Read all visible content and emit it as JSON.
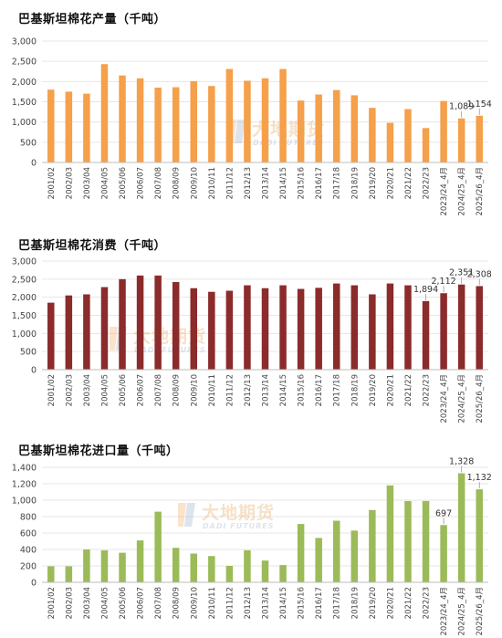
{
  "watermark": {
    "name": "大地期货",
    "english": "DADI FUTURES"
  },
  "chart_data": [
    {
      "type": "bar",
      "title": "巴基斯坦棉花产量（千吨）",
      "color": "#F5A04A",
      "categories": [
        "2001/02",
        "2002/03",
        "2003/04",
        "2004/05",
        "2005/06",
        "2006/07",
        "2007/08",
        "2008/09",
        "2009/10",
        "2010/11",
        "2011/12",
        "2012/13",
        "2013/14",
        "2014/15",
        "2015/16",
        "2016/17",
        "2017/18",
        "2018/19",
        "2019/20",
        "2020/21",
        "2021/22",
        "2022/23",
        "2023/24_4月",
        "2024/25_4月",
        "2025/26_4月"
      ],
      "values": [
        1800,
        1750,
        1700,
        2430,
        2150,
        2080,
        1850,
        1860,
        2010,
        1890,
        2310,
        2020,
        2080,
        2310,
        1530,
        1680,
        1790,
        1660,
        1350,
        980,
        1320,
        850,
        1520,
        1089,
        1154
      ],
      "ylim": [
        0,
        3000
      ],
      "yticks": [
        0,
        500,
        1000,
        1500,
        2000,
        2500,
        3000
      ],
      "ytick_labels": [
        "0",
        "500",
        "1,000",
        "1,500",
        "2,000",
        "2,500",
        "3,000"
      ],
      "data_labels": [
        {
          "index": 23,
          "text": "1,089"
        },
        {
          "index": 24,
          "text": "1,154"
        }
      ]
    },
    {
      "type": "bar",
      "title": "巴基斯坦棉花消费（千吨）",
      "color": "#8B2B2B",
      "categories": [
        "2001/02",
        "2002/03",
        "2003/04",
        "2004/05",
        "2005/06",
        "2006/07",
        "2007/08",
        "2008/09",
        "2009/10",
        "2010/11",
        "2011/12",
        "2012/13",
        "2013/14",
        "2014/15",
        "2015/16",
        "2016/17",
        "2017/18",
        "2018/19",
        "2019/20",
        "2020/21",
        "2021/22",
        "2022/23",
        "2023/24_4月",
        "2024/25_4月",
        "2025/26_4月"
      ],
      "values": [
        1850,
        2050,
        2080,
        2280,
        2500,
        2600,
        2600,
        2420,
        2250,
        2150,
        2180,
        2330,
        2250,
        2330,
        2230,
        2260,
        2380,
        2330,
        2080,
        2380,
        2330,
        1894,
        2112,
        2351,
        2308
      ],
      "ylim": [
        0,
        3000
      ],
      "yticks": [
        0,
        500,
        1000,
        1500,
        2000,
        2500,
        3000
      ],
      "ytick_labels": [
        "0",
        "500",
        "1,000",
        "1,500",
        "2,000",
        "2,500",
        "3,000"
      ],
      "data_labels": [
        {
          "index": 21,
          "text": "1,894"
        },
        {
          "index": 22,
          "text": "2,112"
        },
        {
          "index": 23,
          "text": "2,351"
        },
        {
          "index": 24,
          "text": "2,308"
        }
      ]
    },
    {
      "type": "bar",
      "title": "巴基斯坦棉花进口量（千吨）",
      "color": "#9BBB59",
      "categories": [
        "2001/02",
        "2002/03",
        "2003/04",
        "2004/05",
        "2005/06",
        "2006/07",
        "2007/08",
        "2008/09",
        "2009/10",
        "2010/11",
        "2011/12",
        "2012/13",
        "2013/14",
        "2014/15",
        "2015/16",
        "2016/17",
        "2017/18",
        "2018/19",
        "2019/20",
        "2020/21",
        "2021/22",
        "2022/23",
        "2023/24_4月",
        "2024/25_4月",
        "2025/26_4月"
      ],
      "values": [
        195,
        195,
        400,
        390,
        360,
        510,
        860,
        420,
        350,
        320,
        200,
        390,
        265,
        210,
        710,
        540,
        750,
        630,
        880,
        1180,
        990,
        990,
        697,
        1328,
        1132
      ],
      "ylim": [
        0,
        1400
      ],
      "yticks": [
        0,
        200,
        400,
        600,
        800,
        1000,
        1200,
        1400
      ],
      "ytick_labels": [
        "0",
        "200",
        "400",
        "600",
        "800",
        "1,000",
        "1,200",
        "1,400"
      ],
      "data_labels": [
        {
          "index": 22,
          "text": "697"
        },
        {
          "index": 23,
          "text": "1,328"
        },
        {
          "index": 24,
          "text": "1,132"
        }
      ]
    }
  ]
}
